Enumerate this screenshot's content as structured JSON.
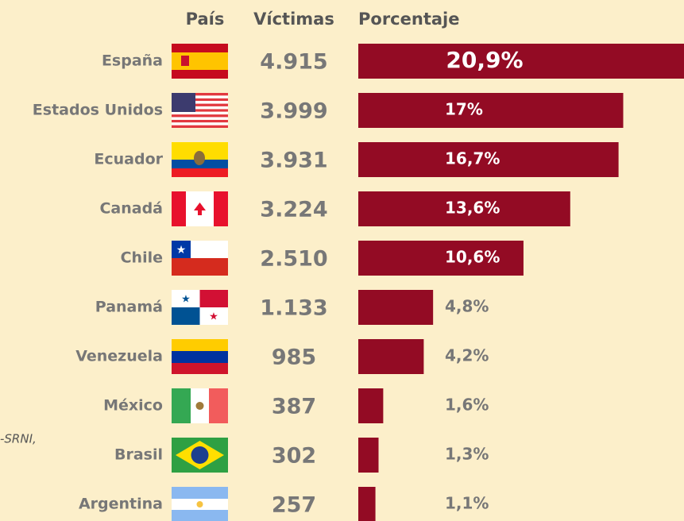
{
  "chart_data": {
    "type": "bar",
    "headers": [
      "País",
      "Víctimas",
      "Porcentaje"
    ],
    "categories": [
      "España",
      "Estados Unidos",
      "Ecuador",
      "Canadá",
      "Chile",
      "Panamá",
      "Venezuela",
      "México",
      "Brasil",
      "Argentina"
    ],
    "victims": [
      "4.915",
      "3.999",
      "3.931",
      "3.224",
      "2.510",
      "1.133",
      "985",
      "387",
      "302",
      "257"
    ],
    "values": [
      20.9,
      17,
      16.7,
      13.6,
      10.6,
      4.8,
      4.2,
      1.6,
      1.3,
      1.1
    ],
    "value_labels": [
      "20,9%",
      "17%",
      "16,7%",
      "13,6%",
      "10,6%",
      "4,8%",
      "4,2%",
      "1,6%",
      "1,3%",
      "1,1%"
    ],
    "color": "#930b24",
    "side_note": "-SRNI,"
  }
}
